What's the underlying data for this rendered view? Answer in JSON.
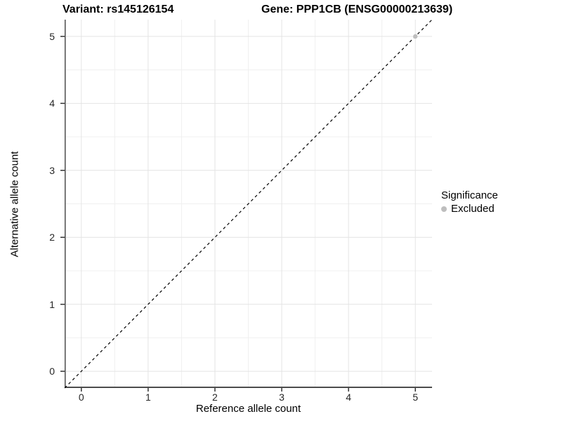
{
  "header": {
    "title_left": "Variant: rs145126154",
    "title_right": "Gene: PPP1CB (ENSG00000213639)"
  },
  "chart_data": {
    "type": "scatter",
    "title": "Variant: rs145126154    Gene: PPP1CB (ENSG00000213639)",
    "xlabel": "Reference allele count",
    "ylabel": "Alternative allele count",
    "xlim": [
      -0.25,
      5.25
    ],
    "ylim": [
      -0.25,
      5.25
    ],
    "x_ticks": [
      0,
      1,
      2,
      3,
      4,
      5
    ],
    "y_ticks": [
      0,
      1,
      2,
      3,
      4,
      5
    ],
    "grid": {
      "major": true,
      "minor": true
    },
    "reference_line": {
      "type": "identity",
      "slope": 1,
      "intercept": 0,
      "style": "dashed",
      "color": "#000000"
    },
    "series": [
      {
        "name": "Excluded",
        "color": "#bebebe",
        "points": [
          {
            "x": 5,
            "y": 5
          }
        ]
      }
    ],
    "legend": {
      "title": "Significance",
      "position": "right",
      "items": [
        {
          "label": "Excluded",
          "color": "#bebebe",
          "marker": "circle"
        }
      ]
    }
  },
  "colors": {
    "background": "#ffffff",
    "grid_major": "#e4e4e4",
    "grid_minor": "#f0f0f0",
    "axis_line": "#4d4d4d",
    "tick_mark": "#333333",
    "tick_text": "#262626",
    "title_text": "#000000"
  }
}
